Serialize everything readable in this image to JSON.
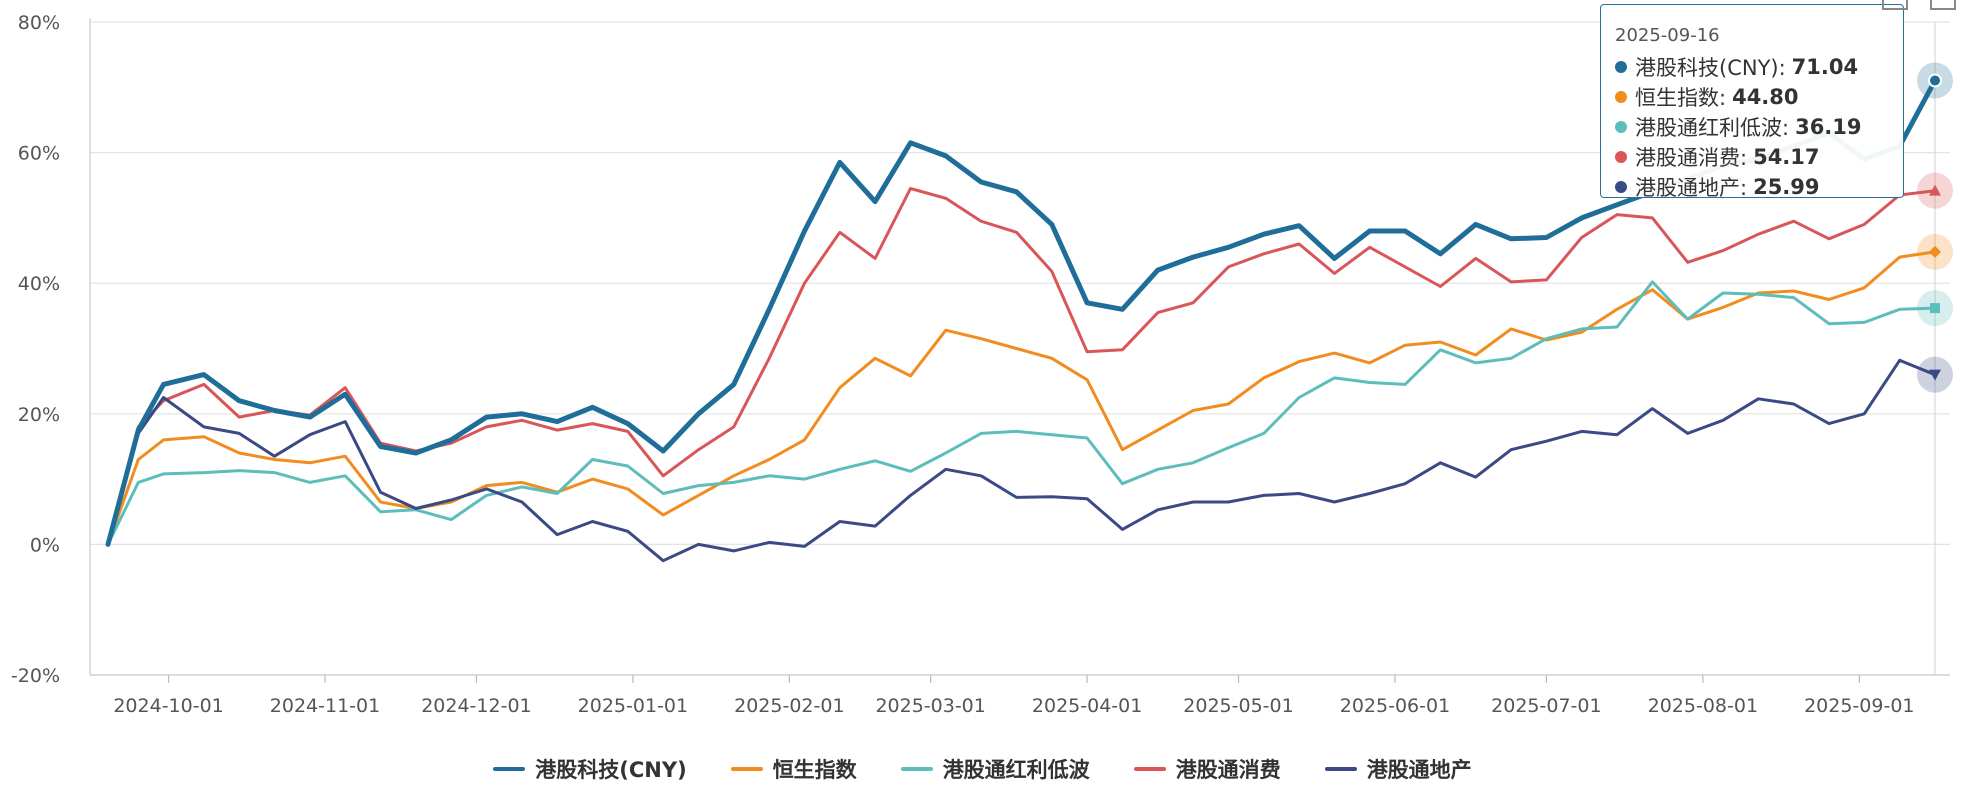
{
  "chart_data": {
    "type": "line",
    "yticks": [
      "80%",
      "60%",
      "40%",
      "20%",
      "0%",
      "-20%"
    ],
    "ylim": [
      -20,
      80
    ],
    "xticks": [
      "2024-10-01",
      "2024-11-01",
      "2024-12-01",
      "2025-01-01",
      "2025-02-01",
      "2025-03-01",
      "2025-04-01",
      "2025-05-01",
      "2025-06-01",
      "2025-07-01",
      "2025-08-01",
      "2025-09-01"
    ],
    "x": [
      "2024-09-19",
      "2024-09-25",
      "2024-09-30",
      "2024-10-08",
      "2024-10-15",
      "2024-10-22",
      "2024-10-29",
      "2024-11-05",
      "2024-11-12",
      "2024-11-19",
      "2024-11-26",
      "2024-12-03",
      "2024-12-10",
      "2024-12-17",
      "2024-12-24",
      "2024-12-31",
      "2025-01-07",
      "2025-01-14",
      "2025-01-21",
      "2025-01-28",
      "2025-02-04",
      "2025-02-11",
      "2025-02-18",
      "2025-02-25",
      "2025-03-04",
      "2025-03-11",
      "2025-03-18",
      "2025-03-25",
      "2025-04-01",
      "2025-04-08",
      "2025-04-15",
      "2025-04-22",
      "2025-04-29",
      "2025-05-06",
      "2025-05-13",
      "2025-05-20",
      "2025-05-27",
      "2025-06-03",
      "2025-06-10",
      "2025-06-17",
      "2025-06-24",
      "2025-07-01",
      "2025-07-08",
      "2025-07-15",
      "2025-07-22",
      "2025-07-29",
      "2025-08-05",
      "2025-08-12",
      "2025-08-19",
      "2025-08-26",
      "2025-09-02",
      "2025-09-09",
      "2025-09-16"
    ],
    "grid": true,
    "legend_position": "bottom",
    "series": [
      {
        "name": "港股科技(CNY)",
        "color": "#1f6e99",
        "width": 5,
        "values": [
          0,
          17.5,
          24.5,
          26,
          22,
          20.5,
          19.5,
          23,
          15,
          14,
          16,
          19.5,
          20,
          18.8,
          21,
          18.5,
          14.3,
          20,
          24.5,
          36,
          48,
          58.5,
          52.5,
          61.5,
          59.5,
          55.5,
          54,
          49,
          37,
          36,
          42,
          44,
          45.5,
          47.5,
          48.8,
          43.8,
          48,
          48,
          44.5,
          49,
          46.8,
          47,
          50,
          52,
          54,
          56,
          58,
          59,
          61,
          63,
          59,
          61,
          71.04
        ]
      },
      {
        "name": "恒生指数",
        "color": "#f28c1e",
        "width": 3,
        "values": [
          0,
          13,
          16,
          16.5,
          14,
          13,
          12.5,
          13.5,
          6.5,
          5.5,
          6.5,
          9,
          9.5,
          8,
          10,
          8.5,
          4.5,
          7.5,
          10.5,
          13,
          16,
          24,
          28.5,
          25.8,
          32.8,
          31.5,
          30,
          28.5,
          25.2,
          14.5,
          17.5,
          20.5,
          21.5,
          25.5,
          28,
          29.3,
          27.8,
          30.5,
          31,
          29,
          33,
          31.3,
          32.5,
          36,
          39,
          34.5,
          36.3,
          38.5,
          38.8,
          37.5,
          39.3,
          44,
          44.8
        ]
      },
      {
        "name": "港股通红利低波",
        "color": "#5dbdbb",
        "width": 3,
        "values": [
          0,
          9.5,
          10.8,
          11,
          11.3,
          11,
          9.5,
          10.5,
          5,
          5.3,
          3.8,
          7.5,
          8.8,
          7.8,
          13,
          12,
          7.8,
          9,
          9.5,
          10.5,
          10,
          11.5,
          12.8,
          11.2,
          14,
          17,
          17.3,
          16.8,
          16.3,
          9.3,
          11.5,
          12.5,
          14.8,
          17,
          22.5,
          25.5,
          24.8,
          24.5,
          29.8,
          27.8,
          28.5,
          31.5,
          33,
          33.3,
          40.2,
          34.5,
          38.5,
          38.3,
          37.8,
          33.8,
          34,
          36,
          36.19
        ]
      },
      {
        "name": "港股通消费",
        "color": "#d95658",
        "width": 3,
        "values": [
          0,
          18,
          22,
          24.5,
          19.5,
          20.5,
          19.8,
          24,
          15.5,
          14.3,
          15.5,
          18,
          19,
          17.5,
          18.5,
          17.3,
          10.5,
          14.5,
          18,
          28.5,
          40,
          47.8,
          43.8,
          54.5,
          53,
          49.5,
          47.8,
          41.8,
          29.5,
          29.8,
          35.5,
          37,
          42.5,
          44.5,
          46,
          41.5,
          45.5,
          42.5,
          39.5,
          43.8,
          40.2,
          40.5,
          47,
          50.5,
          50,
          43.2,
          45,
          47.5,
          49.5,
          46.8,
          49,
          53.5,
          54.17
        ]
      },
      {
        "name": "港股通地产",
        "color": "#3b4a84",
        "width": 3,
        "values": [
          0,
          17,
          22.5,
          18,
          17,
          13.5,
          16.8,
          18.8,
          8,
          5.5,
          6.8,
          8.5,
          6.5,
          1.5,
          3.5,
          2,
          -2.5,
          0,
          -1,
          0.3,
          -0.3,
          3.5,
          2.8,
          7.5,
          11.5,
          10.5,
          7.2,
          7.3,
          7,
          2.3,
          5.3,
          6.5,
          6.5,
          7.5,
          7.8,
          6.5,
          7.8,
          9.3,
          12.5,
          10.3,
          14.5,
          15.8,
          17.3,
          16.8,
          20.8,
          17,
          19,
          22.3,
          21.5,
          18.5,
          20,
          28.2,
          25.99
        ]
      }
    ],
    "tooltip": {
      "date": "2025-09-16",
      "rows": [
        {
          "name": "港股科技(CNY)",
          "value": "71.04",
          "color": "#1f6e99"
        },
        {
          "name": "恒生指数",
          "value": "44.80",
          "color": "#f28c1e"
        },
        {
          "name": "港股通红利低波",
          "value": "36.19",
          "color": "#5dbdbb"
        },
        {
          "name": "港股通消费",
          "value": "54.17",
          "color": "#d95658"
        },
        {
          "name": "港股通地产",
          "value": "25.99",
          "color": "#3b4a84"
        }
      ]
    }
  }
}
